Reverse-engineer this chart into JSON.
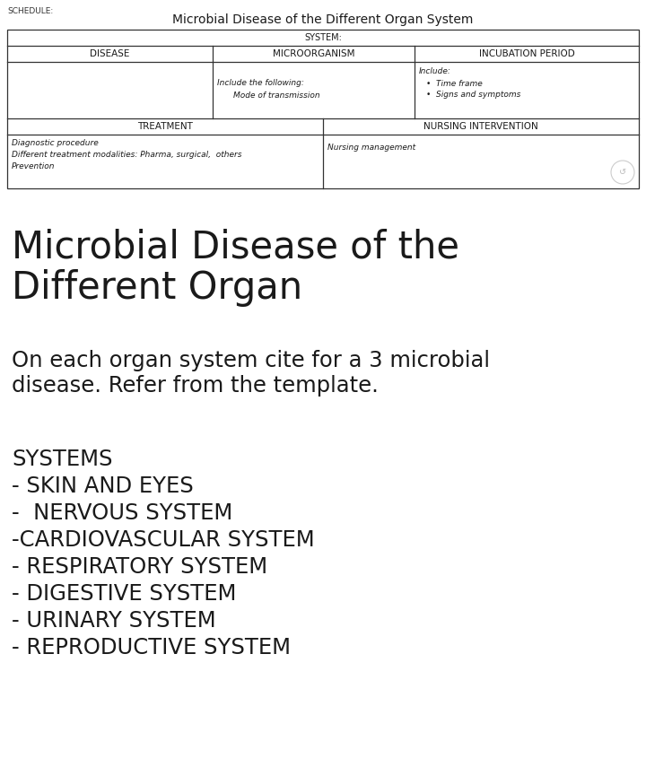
{
  "bg_color": "#ffffff",
  "schedule_label": "SCHEDULE:",
  "table_title": "Microbial Disease of the Different Organ System",
  "system_label": "SYSTEM:",
  "col1_header": "DISEASE",
  "col2_header": "MICROORGANISM",
  "col3_header": "INCUBATION PERIOD",
  "micro_sub1": "Include the following:",
  "micro_sub2": "Mode of transmission",
  "incub_sub1": "Include:",
  "incub_sub2": "•  Time frame",
  "incub_sub3": "•  Signs and symptoms",
  "treat_header": "TREATMENT",
  "nursing_header": "NURSING INTERVENTION",
  "treat_sub1": "Diagnostic procedure",
  "treat_sub2": "Different treatment modalities: Pharma, surgical,  others",
  "treat_sub3": "Prevention",
  "nursing_sub1": "Nursing management",
  "big_title_line1": "Microbial Disease of the",
  "big_title_line2": "Different Organ",
  "body_line1": "On each organ system cite for a 3 microbial",
  "body_line2": "disease. Refer from the template.",
  "systems_title": "SYSTEMS",
  "systems_list": [
    "- SKIN AND EYES",
    "-  NERVOUS SYSTEM",
    "-CARDIOVASCULAR SYSTEM",
    "- RESPIRATORY SYSTEM",
    "- DIGESTIVE SYSTEM",
    "- URINARY SYSTEM",
    "- REPRODUCTIVE SYSTEM"
  ],
  "fig_width": 7.2,
  "fig_height": 8.65,
  "text_color": "#1a1a1a"
}
